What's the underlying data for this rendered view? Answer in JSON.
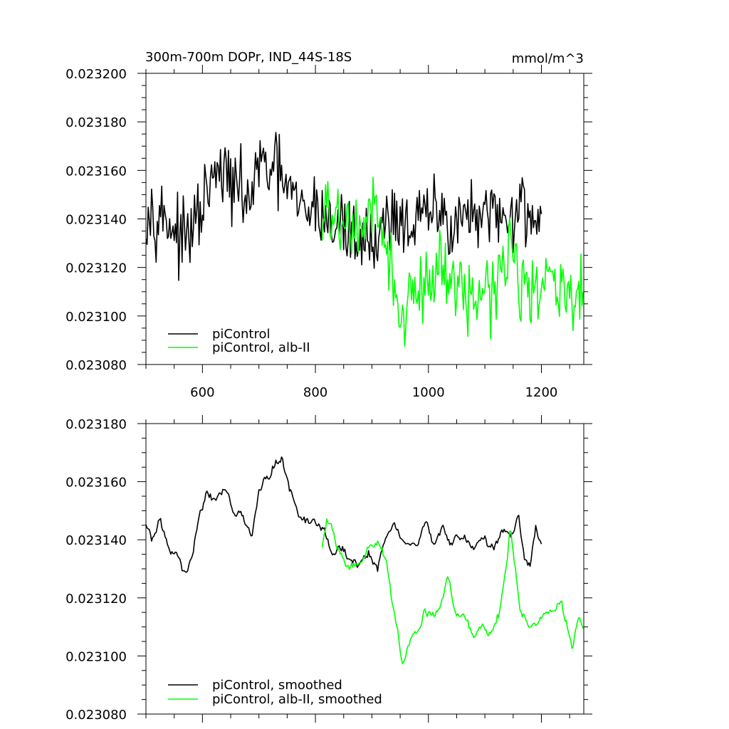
{
  "colors": {
    "pi_control": "#000000",
    "alb_ii": "#00ff00",
    "axes": "#000000",
    "background": "#ffffff"
  },
  "chart_data": [
    {
      "type": "line",
      "title": "300m-700m DOPr, IND_44S-18S",
      "units_label": "mmol/m^3",
      "xlabel": "",
      "ylabel": "",
      "xlim": [
        500,
        1275
      ],
      "ylim": [
        0.02308,
        0.0232
      ],
      "x_ticks": [
        600,
        800,
        1000,
        1200
      ],
      "x_tick_labels": [
        "600",
        "800",
        "1000",
        "1200"
      ],
      "y_ticks": [
        0.02308,
        0.0231,
        0.02312,
        0.02314,
        0.02316,
        0.02318,
        0.0232
      ],
      "y_tick_labels": [
        "0.023080",
        "0.023100",
        "0.023120",
        "0.023140",
        "0.023160",
        "0.023180",
        "0.023200"
      ],
      "grid": false,
      "legend_position": "bottom-left",
      "series": [
        {
          "name": "piControl",
          "color": "#000000",
          "anchors": [
            [
              500,
              0.023145
            ],
            [
              520,
              0.023143
            ],
            [
              545,
              0.023138
            ],
            [
              565,
              0.02313
            ],
            [
              585,
              0.023136
            ],
            [
              605,
              0.023148
            ],
            [
              625,
              0.023158
            ],
            [
              640,
              0.023158
            ],
            [
              660,
              0.023152
            ],
            [
              685,
              0.023148
            ],
            [
              700,
              0.023162
            ],
            [
              720,
              0.02316
            ],
            [
              740,
              0.023158
            ],
            [
              760,
              0.023148
            ],
            [
              780,
              0.023142
            ],
            [
              800,
              0.023145
            ],
            [
              815,
              0.023142
            ],
            [
              830,
              0.023136
            ],
            [
              845,
              0.023138
            ],
            [
              860,
              0.023134
            ],
            [
              880,
              0.023132
            ],
            [
              900,
              0.02313
            ],
            [
              920,
              0.023138
            ],
            [
              940,
              0.023142
            ],
            [
              960,
              0.023138
            ],
            [
              980,
              0.023138
            ],
            [
              1000,
              0.023142
            ],
            [
              1020,
              0.023142
            ],
            [
              1040,
              0.023138
            ],
            [
              1060,
              0.023142
            ],
            [
              1080,
              0.02314
            ],
            [
              1100,
              0.023138
            ],
            [
              1120,
              0.023142
            ],
            [
              1140,
              0.02314
            ],
            [
              1160,
              0.023146
            ],
            [
              1180,
              0.023142
            ],
            [
              1200,
              0.02314
            ]
          ]
        },
        {
          "name": "piControl, alb-II",
          "color": "#00ff00",
          "anchors": [
            [
              812,
              0.023138
            ],
            [
              830,
              0.023143
            ],
            [
              850,
              0.023136
            ],
            [
              870,
              0.023134
            ],
            [
              890,
              0.023138
            ],
            [
              910,
              0.023142
            ],
            [
              925,
              0.02313
            ],
            [
              940,
              0.023112
            ],
            [
              950,
              0.023098
            ],
            [
              965,
              0.023105
            ],
            [
              980,
              0.023108
            ],
            [
              1000,
              0.023115
            ],
            [
              1020,
              0.023122
            ],
            [
              1040,
              0.023114
            ],
            [
              1060,
              0.023112
            ],
            [
              1080,
              0.023108
            ],
            [
              1100,
              0.02311
            ],
            [
              1120,
              0.023112
            ],
            [
              1140,
              0.023132
            ],
            [
              1150,
              0.023128
            ],
            [
              1165,
              0.023112
            ],
            [
              1185,
              0.02311
            ],
            [
              1200,
              0.02311
            ],
            [
              1220,
              0.023114
            ],
            [
              1240,
              0.023112
            ],
            [
              1255,
              0.023102
            ],
            [
              1275,
              0.02311
            ]
          ]
        }
      ]
    },
    {
      "type": "line",
      "title": "",
      "xlabel": "",
      "ylabel": "",
      "xlim": [
        500,
        1275
      ],
      "ylim": [
        0.02308,
        0.02318
      ],
      "x_ticks": [
        600,
        800,
        1000,
        1200
      ],
      "x_tick_labels": [],
      "y_ticks": [
        0.02308,
        0.0231,
        0.02312,
        0.02314,
        0.02316,
        0.02318
      ],
      "y_tick_labels": [
        "0.023080",
        "0.023100",
        "0.023120",
        "0.023140",
        "0.023160",
        "0.023180"
      ],
      "grid": false,
      "legend_position": "bottom-left",
      "series": [
        {
          "name": "piControl, smoothed",
          "color": "#000000",
          "anchors": [
            [
              500,
              0.023145
            ],
            [
              510,
              0.02314
            ],
            [
              525,
              0.023146
            ],
            [
              540,
              0.023138
            ],
            [
              555,
              0.023134
            ],
            [
              568,
              0.023129
            ],
            [
              580,
              0.023133
            ],
            [
              595,
              0.023148
            ],
            [
              608,
              0.023156
            ],
            [
              620,
              0.023154
            ],
            [
              640,
              0.023158
            ],
            [
              655,
              0.023151
            ],
            [
              672,
              0.023148
            ],
            [
              688,
              0.023141
            ],
            [
              700,
              0.023156
            ],
            [
              720,
              0.023164
            ],
            [
              740,
              0.023168
            ],
            [
              755,
              0.023158
            ],
            [
              770,
              0.023148
            ],
            [
              790,
              0.023146
            ],
            [
              805,
              0.023146
            ],
            [
              815,
              0.023142
            ],
            [
              830,
              0.023134
            ],
            [
              848,
              0.023138
            ],
            [
              860,
              0.023134
            ],
            [
              880,
              0.023132
            ],
            [
              895,
              0.023136
            ],
            [
              910,
              0.023128
            ],
            [
              925,
              0.023142
            ],
            [
              940,
              0.023145
            ],
            [
              960,
              0.023138
            ],
            [
              980,
              0.023137
            ],
            [
              995,
              0.023146
            ],
            [
              1010,
              0.023138
            ],
            [
              1025,
              0.023144
            ],
            [
              1040,
              0.023139
            ],
            [
              1060,
              0.023142
            ],
            [
              1080,
              0.023138
            ],
            [
              1100,
              0.023141
            ],
            [
              1115,
              0.023136
            ],
            [
              1130,
              0.023142
            ],
            [
              1145,
              0.023141
            ],
            [
              1160,
              0.023148
            ],
            [
              1170,
              0.023134
            ],
            [
              1180,
              0.02313
            ],
            [
              1190,
              0.023144
            ],
            [
              1200,
              0.023139
            ]
          ]
        },
        {
          "name": "piControl, alb-II, smoothed",
          "color": "#00ff00",
          "anchors": [
            [
              812,
              0.023138
            ],
            [
              820,
              0.023148
            ],
            [
              830,
              0.023142
            ],
            [
              845,
              0.023136
            ],
            [
              860,
              0.02313
            ],
            [
              880,
              0.023132
            ],
            [
              895,
              0.023138
            ],
            [
              910,
              0.023138
            ],
            [
              925,
              0.023134
            ],
            [
              935,
              0.02312
            ],
            [
              945,
              0.02311
            ],
            [
              953,
              0.023096
            ],
            [
              965,
              0.023104
            ],
            [
              980,
              0.023108
            ],
            [
              995,
              0.023116
            ],
            [
              1010,
              0.023114
            ],
            [
              1025,
              0.02312
            ],
            [
              1035,
              0.023128
            ],
            [
              1050,
              0.023114
            ],
            [
              1065,
              0.023112
            ],
            [
              1080,
              0.023106
            ],
            [
              1095,
              0.023112
            ],
            [
              1110,
              0.023108
            ],
            [
              1125,
              0.023114
            ],
            [
              1138,
              0.023132
            ],
            [
              1145,
              0.023144
            ],
            [
              1152,
              0.023132
            ],
            [
              1162,
              0.023116
            ],
            [
              1175,
              0.023112
            ],
            [
              1190,
              0.02311
            ],
            [
              1205,
              0.023114
            ],
            [
              1220,
              0.023116
            ],
            [
              1235,
              0.023118
            ],
            [
              1245,
              0.02311
            ],
            [
              1255,
              0.023102
            ],
            [
              1265,
              0.023114
            ],
            [
              1275,
              0.02311
            ]
          ]
        }
      ]
    }
  ]
}
